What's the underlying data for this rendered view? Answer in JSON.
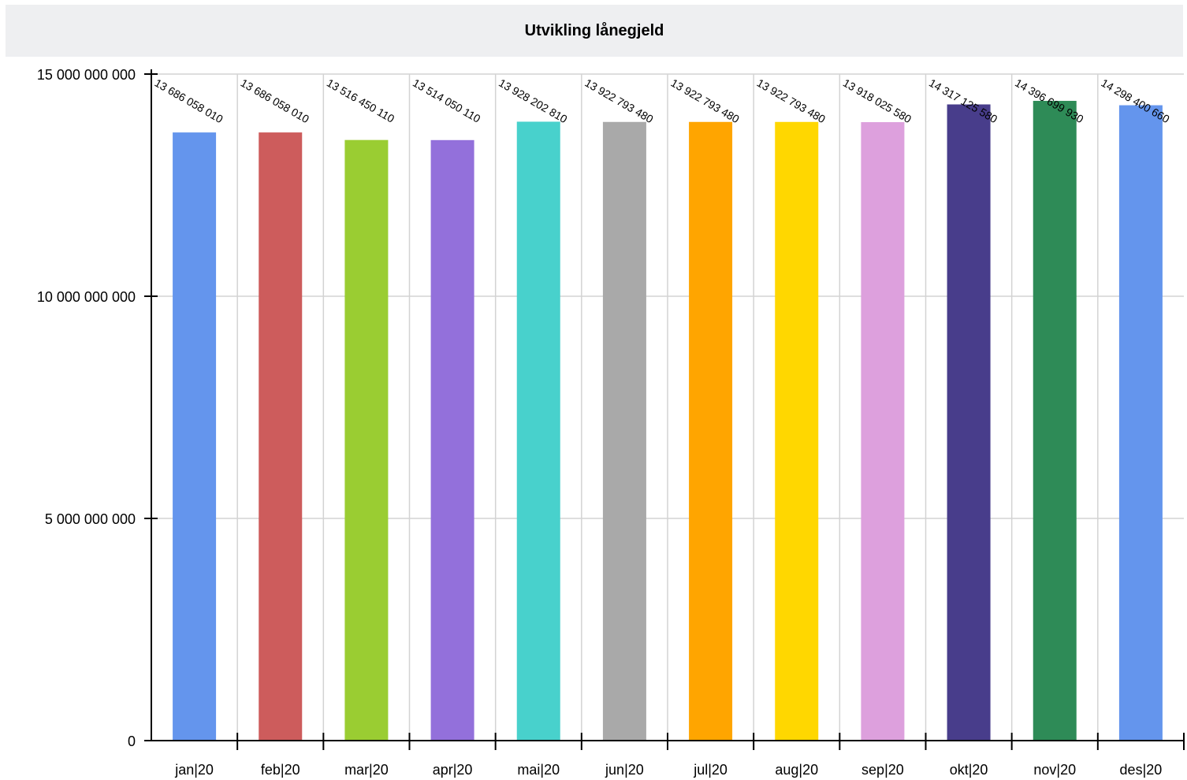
{
  "chart_data": {
    "type": "bar",
    "title": "Utvikling lånegjeld",
    "xlabel": "",
    "ylabel": "",
    "ylim": [
      0,
      15000000000
    ],
    "yticks": [
      0,
      5000000000,
      10000000000,
      15000000000
    ],
    "ytick_labels": [
      "0",
      "5 000 000 000",
      "10 000 000 000",
      "15 000 000 000"
    ],
    "grid": true,
    "categories": [
      "jan|20",
      "feb|20",
      "mar|20",
      "apr|20",
      "mai|20",
      "jun|20",
      "jul|20",
      "aug|20",
      "sep|20",
      "okt|20",
      "nov|20",
      "des|20"
    ],
    "values": [
      13686058010,
      13686058010,
      13516450110,
      13514050110,
      13928202810,
      13922793480,
      13922793480,
      13922793480,
      13918025580,
      14317125580,
      14396699930,
      14298400660
    ],
    "data_labels": [
      "13 686 058 010",
      "13 686 058 010",
      "13 516 450 110",
      "13 514 050 110",
      "13 928 202 810",
      "13 922 793 480",
      "13 922 793 480",
      "13 922 793 480",
      "13 918 025 580",
      "14 317 125 580",
      "14 396 699 930",
      "14 298 400 660"
    ],
    "colors": [
      "#6495ed",
      "#cd5c5c",
      "#9acd32",
      "#9370db",
      "#48d1cc",
      "#a9a9a9",
      "#ffa500",
      "#ffd700",
      "#dda0dd",
      "#483d8b",
      "#2e8b57",
      "#6495ed"
    ]
  }
}
